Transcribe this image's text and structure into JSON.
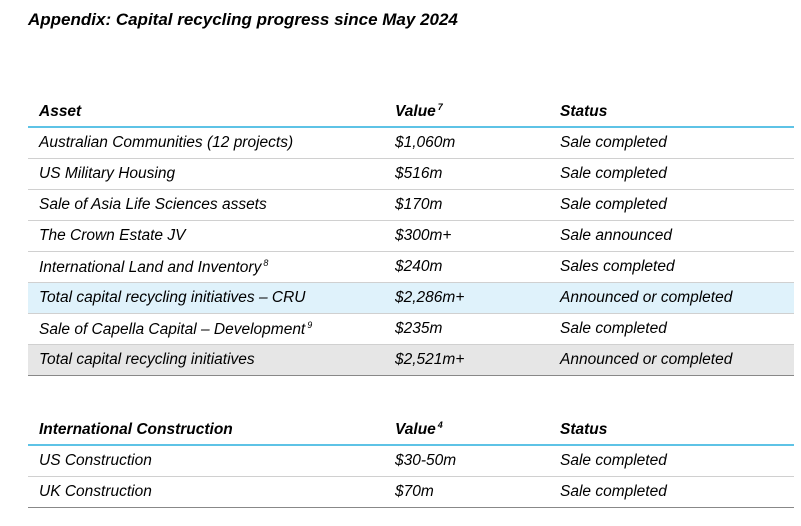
{
  "title": "Appendix: Capital recycling progress since May 2024",
  "table1": {
    "headers": {
      "asset": "Asset",
      "value": "Value",
      "value_note": "7",
      "status": "Status"
    },
    "rows": [
      {
        "asset": "Australian Communities (12 projects)",
        "note": "",
        "value": "$1,060m",
        "status": "Sale completed"
      },
      {
        "asset": "US Military Housing",
        "note": "",
        "value": "$516m",
        "status": "Sale completed"
      },
      {
        "asset": "Sale of Asia Life Sciences assets",
        "note": "",
        "value": "$170m",
        "status": "Sale completed"
      },
      {
        "asset": "The Crown Estate JV",
        "note": "",
        "value": "$300m+",
        "status": "Sale announced"
      },
      {
        "asset": "International Land and Inventory",
        "note": "8",
        "value": "$240m",
        "status": "Sales completed"
      },
      {
        "asset": "Total capital recycling initiatives – CRU",
        "note": "",
        "value": "$2,286m+",
        "status": "Announced or completed"
      },
      {
        "asset": "Sale of Capella Capital – Development",
        "note": "9",
        "value": "$235m",
        "status": "Sale completed"
      },
      {
        "asset": "Total capital recycling initiatives",
        "note": "",
        "value": "$2,521m+",
        "status": "Announced or completed"
      }
    ]
  },
  "table2": {
    "headers": {
      "asset": "International Construction",
      "value": "Value",
      "value_note": "4",
      "status": "Status"
    },
    "rows": [
      {
        "asset": "US Construction",
        "value": "$30-50m",
        "status": "Sale completed"
      },
      {
        "asset": "UK Construction",
        "value": "$70m",
        "status": "Sale completed"
      }
    ]
  },
  "colors": {
    "header_rule": "#5ec3e6",
    "highlight_row": "#dff2fb",
    "total_row": "#e6e6e6"
  }
}
